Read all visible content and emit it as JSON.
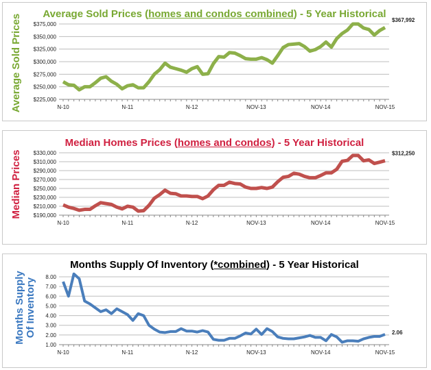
{
  "chart_data": [
    {
      "type": "line",
      "title_pre": "Average Sold Prices (",
      "title_u": "homes and condos combined",
      "title_post": ") - 5 Year Historical",
      "ylabel": "Average Sold Prices",
      "color": "#8db04a",
      "title_color": "#78a832",
      "ylim": [
        225000,
        375000
      ],
      "yticks": [
        "$225,000",
        "$250,000",
        "$275,000",
        "$300,000",
        "$325,000",
        "$350,000",
        "$375,000"
      ],
      "xtick_labels": [
        "N-10",
        "N-11",
        "N-12",
        "NOV-13",
        "NOV-14",
        "NOV-15"
      ],
      "end_label": "$367,992",
      "grid": true,
      "values": [
        260000,
        254000,
        253000,
        244000,
        250000,
        250000,
        258000,
        267000,
        270000,
        261000,
        255000,
        246000,
        252000,
        254000,
        248000,
        248000,
        260000,
        275000,
        284000,
        297000,
        289000,
        286000,
        283000,
        279000,
        286000,
        290000,
        275000,
        276000,
        296000,
        310000,
        309000,
        318000,
        317000,
        312000,
        306000,
        305000,
        305000,
        308000,
        304000,
        297000,
        312000,
        328000,
        334000,
        335000,
        336000,
        330000,
        321000,
        324000,
        330000,
        339000,
        329000,
        346000,
        356000,
        363000,
        375000,
        375000,
        367000,
        364000,
        353000,
        362000,
        367992
      ]
    },
    {
      "type": "line",
      "title_pre": "Median Homes Prices (",
      "title_u": "homes and condos",
      "title_post": ") - 5 Year Historical",
      "ylabel": "Median Prices",
      "color": "#c0504d",
      "title_color": "#d02040",
      "ylim": [
        190000,
        330000
      ],
      "yticks": [
        "$190,000",
        "$210,000",
        "$230,000",
        "$250,000",
        "$270,000",
        "$290,000",
        "$310,000",
        "$330,000"
      ],
      "xtick_labels": [
        "N-10",
        "N-11",
        "N-12",
        "NOV-13",
        "NOV-14",
        "NOV-15"
      ],
      "end_label": "$312,250",
      "grid": true,
      "values": [
        213000,
        208000,
        205000,
        201000,
        203000,
        203000,
        211000,
        218000,
        216000,
        214000,
        208000,
        204000,
        210000,
        208000,
        199000,
        200000,
        212000,
        228000,
        236000,
        246000,
        239000,
        238000,
        233000,
        233000,
        232000,
        232000,
        227000,
        233000,
        247000,
        257000,
        257000,
        264000,
        261000,
        260000,
        253000,
        250000,
        250000,
        252000,
        250000,
        253000,
        265000,
        275000,
        277000,
        284000,
        282000,
        277000,
        274000,
        274000,
        279000,
        285000,
        285000,
        293000,
        311000,
        313000,
        324000,
        324000,
        312000,
        314000,
        306000,
        309000,
        312250
      ]
    },
    {
      "type": "line",
      "title_pre": "Months Supply Of Inventory (",
      "title_u": "*combined",
      "title_post": ") - 5 Year Historical",
      "ylabel": "Months Supply Of Inventory",
      "color": "#4a7ebb",
      "title_color": "#000000",
      "ylim": [
        1,
        8
      ],
      "yticks": [
        "1.00",
        "2.00",
        "3.00",
        "4.00",
        "5.00",
        "6.00",
        "7.00",
        "8.00"
      ],
      "xtick_labels": [
        "N-10",
        "N-11",
        "N-12",
        "NOV-13",
        "NOV-14",
        "NOV-15"
      ],
      "end_label": "2.06",
      "grid": true,
      "values": [
        7.5,
        6.0,
        8.3,
        7.8,
        5.5,
        5.2,
        4.8,
        4.4,
        4.6,
        4.2,
        4.7,
        4.4,
        4.1,
        3.5,
        4.2,
        4.0,
        3.0,
        2.6,
        2.3,
        2.25,
        2.35,
        2.35,
        2.65,
        2.4,
        2.4,
        2.3,
        2.45,
        2.3,
        1.55,
        1.45,
        1.45,
        1.65,
        1.65,
        1.9,
        2.2,
        2.1,
        2.6,
        2.05,
        2.65,
        2.35,
        1.8,
        1.65,
        1.6,
        1.6,
        1.7,
        1.8,
        1.95,
        1.75,
        1.75,
        1.4,
        2.05,
        1.8,
        1.25,
        1.4,
        1.4,
        1.35,
        1.6,
        1.75,
        1.85,
        1.85,
        2.06
      ]
    }
  ]
}
